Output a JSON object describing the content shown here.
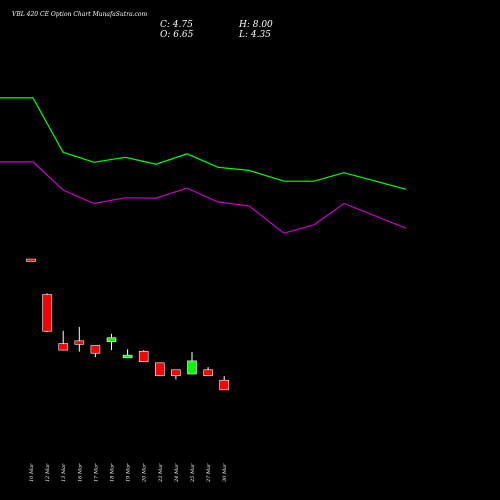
{
  "header": {
    "title": "VBL 420 CE Option Chart MunafaSutra.com",
    "close": "C: 4.75",
    "open": "O: 6.65",
    "high": "H: 8.00",
    "low": "L: 4.35"
  },
  "colors": {
    "background": "#000000",
    "bullish": "#00ff00",
    "bearish": "#ff0000",
    "wick": "#ffffff",
    "upper_line": "#00ff00",
    "lower_line": "#cc00cc",
    "text": "#ffffff"
  },
  "chart_data": {
    "type": "candlestick",
    "categories": [
      "10 Mar",
      "12 Mar",
      "13 Mar",
      "16 Mar",
      "17 Mar",
      "18 Mar",
      "19 Mar",
      "20 Mar",
      "23 Mar",
      "24 Mar",
      "25 Mar",
      "27 Mar",
      "30 Mar"
    ],
    "candles": [
      {
        "open": 48.2,
        "close": 47.6,
        "high": 48.2,
        "low": 47.6
      },
      {
        "open": 39.0,
        "close": 29.5,
        "high": 39.3,
        "low": 29.3
      },
      {
        "open": 26.3,
        "close": 24.6,
        "high": 29.6,
        "low": 24.6
      },
      {
        "open": 27.0,
        "close": 26.1,
        "high": 30.6,
        "low": 24.2
      },
      {
        "open": 25.8,
        "close": 23.8,
        "high": 25.8,
        "low": 22.8
      },
      {
        "open": 26.8,
        "close": 27.8,
        "high": 28.8,
        "low": 24.6
      },
      {
        "open": 22.6,
        "close": 23.3,
        "high": 24.8,
        "low": 22.6
      },
      {
        "open": 24.3,
        "close": 21.6,
        "high": 24.6,
        "low": 21.6
      },
      {
        "open": 21.3,
        "close": 18.0,
        "high": 21.3,
        "low": 18.0
      },
      {
        "open": 19.5,
        "close": 18.0,
        "high": 19.5,
        "low": 17.0
      },
      {
        "open": 18.4,
        "close": 21.8,
        "high": 24.1,
        "low": 18.4
      },
      {
        "open": 19.5,
        "close": 18.0,
        "high": 20.2,
        "low": 18.0
      },
      {
        "open": 16.8,
        "close": 14.3,
        "high": 17.9,
        "low": 14.3
      }
    ],
    "line_upper": [
      90.0,
      90.0,
      75.9,
      73.3,
      74.6,
      72.8,
      75.5,
      72.0,
      71.2,
      68.4,
      68.4,
      70.6,
      66.3
    ],
    "line_lower": [
      73.4,
      73.4,
      66.1,
      62.6,
      64.1,
      64.0,
      66.6,
      63.0,
      62.0,
      54.9,
      57.1,
      62.6,
      56.2
    ],
    "ylim": [
      0,
      105
    ],
    "grid": false
  }
}
